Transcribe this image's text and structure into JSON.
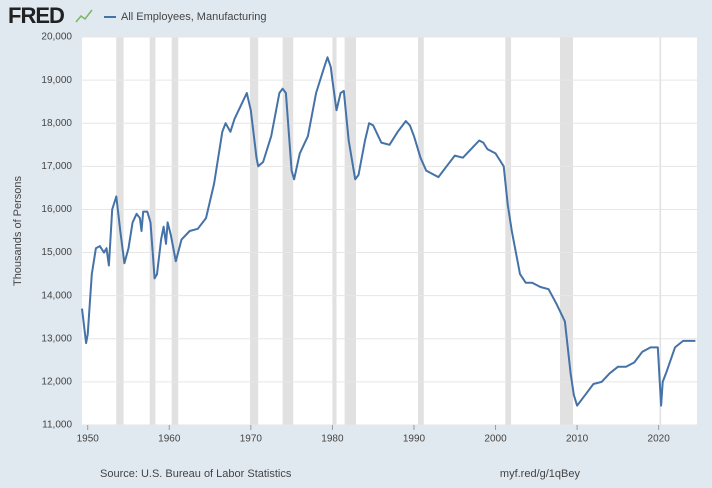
{
  "logo": "FRED",
  "chart_data": {
    "type": "line",
    "y_label": "Thousands of Persons",
    "source": "Source: U.S. Bureau of Labor Statistics",
    "link": "myf.red/g/1qBey",
    "xlim": [
      1949.3,
      2024.7
    ],
    "ylim": [
      11000,
      20000
    ],
    "xticks": [
      1950,
      1960,
      1970,
      1980,
      1990,
      2000,
      2010,
      2020
    ],
    "yticks": [
      {
        "value": 11000,
        "label": "11,000"
      },
      {
        "value": 12000,
        "label": "12,000"
      },
      {
        "value": 13000,
        "label": "13,000"
      },
      {
        "value": 14000,
        "label": "14,000"
      },
      {
        "value": 15000,
        "label": "15,000"
      },
      {
        "value": 16000,
        "label": "16,000"
      },
      {
        "value": 17000,
        "label": "17,000"
      },
      {
        "value": 18000,
        "label": "18,000"
      },
      {
        "value": 19000,
        "label": "19,000"
      },
      {
        "value": 20000,
        "label": "20,000"
      }
    ],
    "grid": true,
    "recession_color": "#e1e1e1",
    "recessions": [
      [
        1953.5,
        1954.4
      ],
      [
        1957.6,
        1958.3
      ],
      [
        1960.3,
        1961.1
      ],
      [
        1969.9,
        1970.9
      ],
      [
        1973.9,
        1975.2
      ],
      [
        1980.0,
        1980.5
      ],
      [
        1981.5,
        1982.9
      ],
      [
        1990.5,
        1991.2
      ],
      [
        2001.2,
        2001.9
      ],
      [
        2007.9,
        2009.5
      ],
      [
        2020.1,
        2020.3
      ]
    ],
    "series": [
      {
        "name": "All Employees, Manufacturing",
        "color": "#4572a7",
        "x": [
          1949.3,
          1949.8,
          1950.0,
          1950.5,
          1951.0,
          1951.5,
          1952.0,
          1952.3,
          1952.6,
          1953.0,
          1953.5,
          1954.0,
          1954.5,
          1955.0,
          1955.5,
          1956.0,
          1956.4,
          1956.6,
          1956.8,
          1957.3,
          1957.7,
          1958.2,
          1958.5,
          1959.0,
          1959.3,
          1959.6,
          1959.8,
          1960.2,
          1960.8,
          1961.5,
          1962.5,
          1963.5,
          1964.5,
          1965.5,
          1966.5,
          1966.9,
          1967.5,
          1968.0,
          1969.0,
          1969.5,
          1970.0,
          1970.7,
          1970.9,
          1971.5,
          1972.5,
          1973.5,
          1973.9,
          1974.3,
          1975.0,
          1975.3,
          1976.0,
          1977.0,
          1978.0,
          1979.0,
          1979.4,
          1979.8,
          1980.0,
          1980.5,
          1981.0,
          1981.4,
          1982.0,
          1982.8,
          1983.2,
          1984.0,
          1984.5,
          1985.0,
          1986.0,
          1987.0,
          1988.0,
          1989.0,
          1989.5,
          1990.0,
          1990.8,
          1991.5,
          1992.5,
          1993.0,
          1994.0,
          1995.0,
          1996.0,
          1997.0,
          1998.0,
          1998.5,
          1999.0,
          2000.0,
          2001.0,
          2001.5,
          2002.0,
          2003.0,
          2003.7,
          2004.5,
          2005.5,
          2006.5,
          2007.5,
          2008.5,
          2009.2,
          2009.6,
          2010.0,
          2011.0,
          2012.0,
          2013.0,
          2014.0,
          2015.0,
          2016.0,
          2017.0,
          2018.0,
          2019.0,
          2019.9,
          2020.3,
          2020.5,
          2021.0,
          2022.0,
          2023.0,
          2024.5
        ],
        "values": [
          13700,
          12900,
          13100,
          14500,
          15100,
          15150,
          15000,
          15100,
          14700,
          16000,
          16300,
          15500,
          14750,
          15100,
          15700,
          15900,
          15800,
          15500,
          15950,
          15950,
          15700,
          14400,
          14500,
          15300,
          15600,
          15200,
          15700,
          15400,
          14800,
          15300,
          15500,
          15550,
          15800,
          16600,
          17800,
          18000,
          17800,
          18100,
          18500,
          18700,
          18300,
          17200,
          17000,
          17100,
          17700,
          18700,
          18800,
          18700,
          16900,
          16700,
          17300,
          17700,
          18700,
          19300,
          19530,
          19300,
          19000,
          18300,
          18700,
          18750,
          17600,
          16700,
          16800,
          17600,
          18000,
          17950,
          17550,
          17500,
          17800,
          18050,
          17950,
          17700,
          17200,
          16900,
          16800,
          16750,
          17000,
          17250,
          17200,
          17400,
          17600,
          17550,
          17400,
          17300,
          17000,
          16100,
          15500,
          14500,
          14300,
          14300,
          14200,
          14150,
          13800,
          13400,
          12200,
          11700,
          11450,
          11700,
          11950,
          12000,
          12200,
          12350,
          12350,
          12450,
          12700,
          12800,
          12800,
          11450,
          12000,
          12250,
          12800,
          12950,
          12950
        ]
      }
    ]
  }
}
